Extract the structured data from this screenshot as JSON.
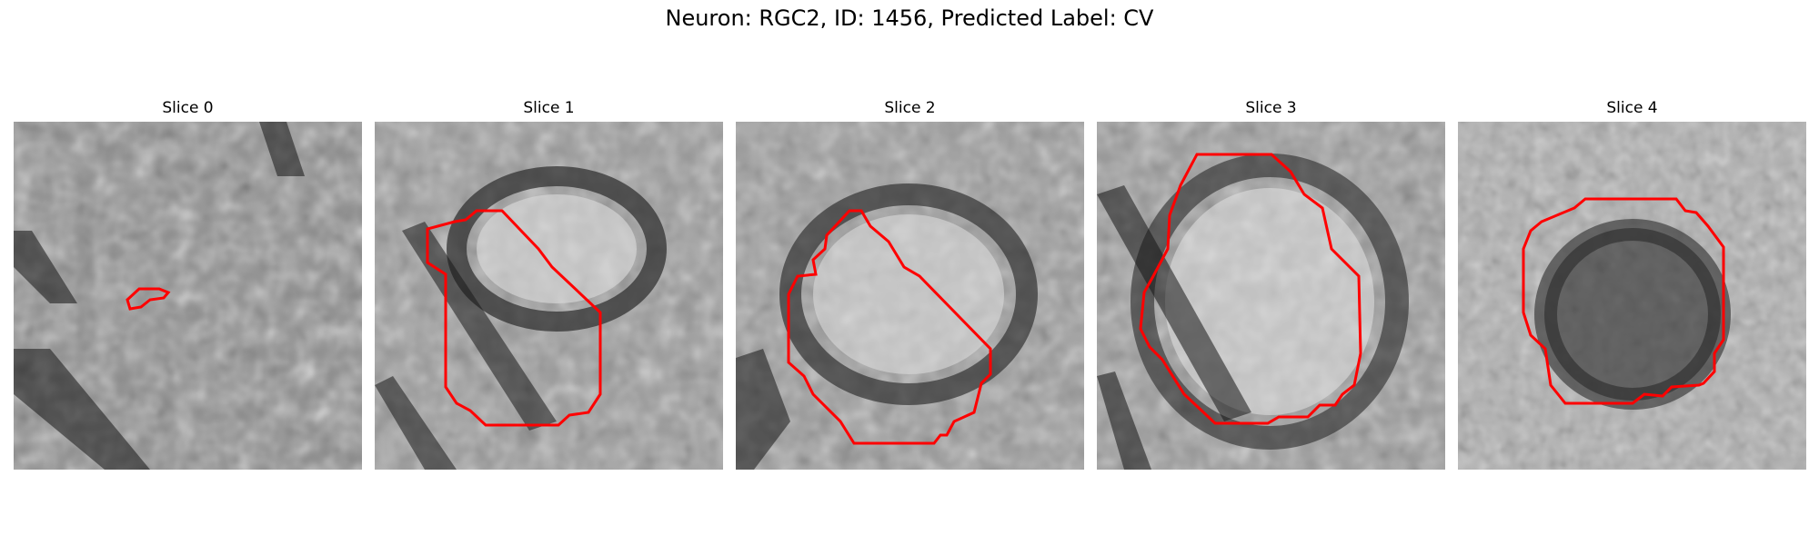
{
  "figure": {
    "title": "Neuron: RGC2, ID: 1456, Predicted Label: CV"
  },
  "panels": [
    {
      "title": "Slice 0",
      "contour_color": "#ff0000"
    },
    {
      "title": "Slice 1",
      "contour_color": "#ff0000"
    },
    {
      "title": "Slice 2",
      "contour_color": "#ff0000"
    },
    {
      "title": "Slice 3",
      "contour_color": "#ff0000"
    },
    {
      "title": "Slice 4",
      "contour_color": "#ff0000"
    }
  ]
}
